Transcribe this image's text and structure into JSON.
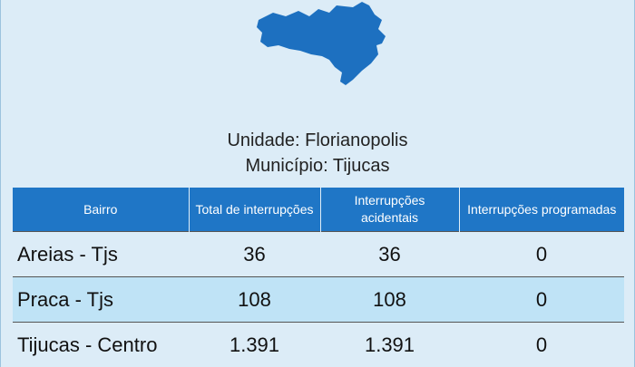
{
  "header": {
    "unit": "Unidade: Florianopolis",
    "municipality": "Município: Tijucas"
  },
  "table": {
    "columns": [
      "Bairro",
      "Total de interrupções",
      "Interrupções acidentais",
      "Interrupções programadas"
    ],
    "rows": [
      [
        "Areias - Tjs",
        "36",
        "36",
        "0"
      ],
      [
        "Praca - Tjs",
        "108",
        "108",
        "0"
      ],
      [
        "Tijucas - Centro",
        "1.391",
        "1.391",
        "0"
      ]
    ]
  }
}
